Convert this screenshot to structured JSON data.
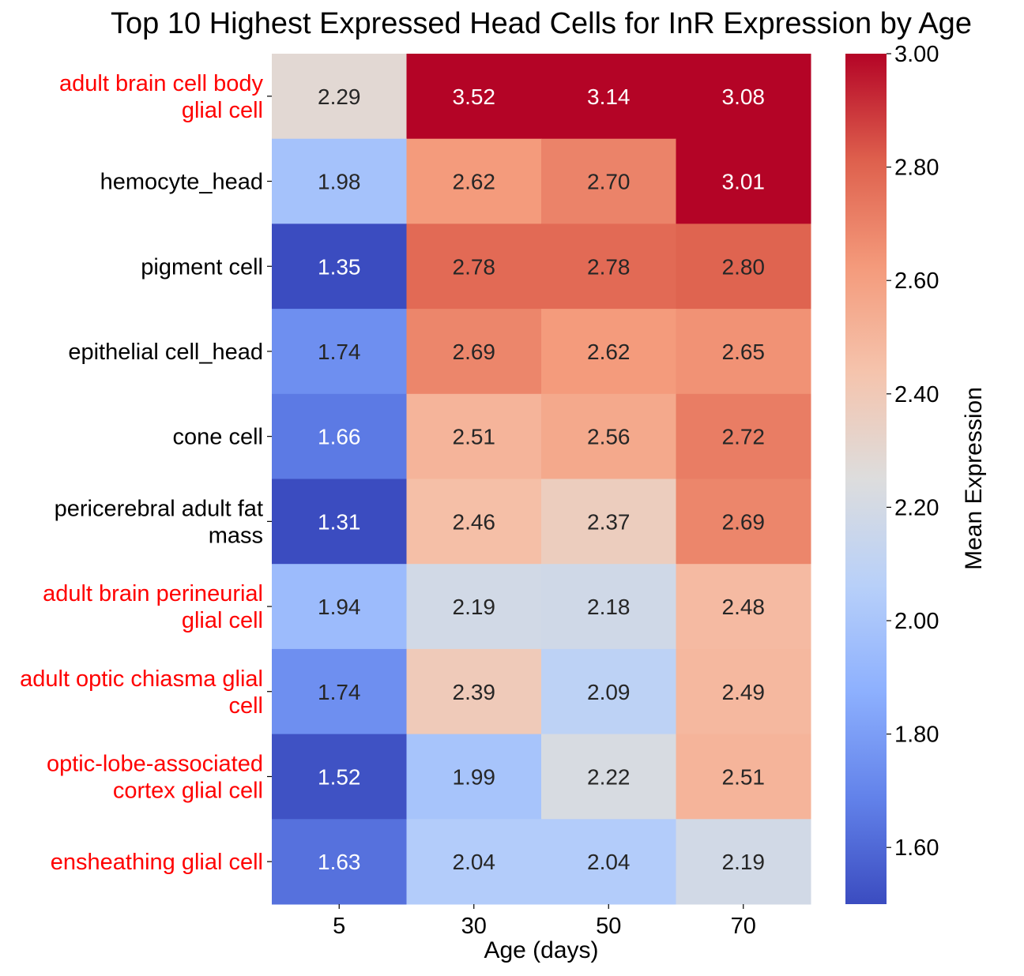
{
  "chart_data": {
    "type": "heatmap",
    "title": "Top 10 Highest Expressed Head Cells for InR Expression by Age",
    "xlabel": "Age (days)",
    "ylabel": "",
    "x_categories": [
      "5",
      "30",
      "50",
      "70"
    ],
    "y_categories": [
      "adult brain cell body glial cell",
      "hemocyte_head",
      "pigment cell",
      "epithelial cell_head",
      "cone cell",
      "pericerebral adult fat mass",
      "adult brain perineurial glial cell",
      "adult optic chiasma glial cell",
      "optic-lobe-associated cortex glial cell",
      "ensheathing glial cell"
    ],
    "y_category_label_lines": [
      [
        "adult brain cell body",
        "glial cell"
      ],
      [
        "hemocyte_head"
      ],
      [
        "pigment cell"
      ],
      [
        "epithelial cell_head"
      ],
      [
        "cone cell"
      ],
      [
        "pericerebral adult fat",
        "mass"
      ],
      [
        "adult brain perineurial",
        "glial cell"
      ],
      [
        "adult optic chiasma glial",
        "cell"
      ],
      [
        "optic-lobe-associated",
        "cortex glial cell"
      ],
      [
        "ensheathing glial cell"
      ]
    ],
    "y_label_colors": [
      "#ff0000",
      "#000000",
      "#000000",
      "#000000",
      "#000000",
      "#000000",
      "#ff0000",
      "#ff0000",
      "#ff0000",
      "#ff0000"
    ],
    "values": [
      [
        2.29,
        3.52,
        3.14,
        3.08
      ],
      [
        1.98,
        2.62,
        2.7,
        3.01
      ],
      [
        1.35,
        2.78,
        2.78,
        2.8
      ],
      [
        1.74,
        2.69,
        2.62,
        2.65
      ],
      [
        1.66,
        2.51,
        2.56,
        2.72
      ],
      [
        1.31,
        2.46,
        2.37,
        2.69
      ],
      [
        1.94,
        2.19,
        2.18,
        2.48
      ],
      [
        1.74,
        2.39,
        2.09,
        2.49
      ],
      [
        1.52,
        1.99,
        2.22,
        2.51
      ],
      [
        1.63,
        2.04,
        2.04,
        2.19
      ]
    ],
    "value_format": "0.00",
    "colormap": "coolwarm",
    "vmin": 1.5,
    "vmax": 3.0,
    "colorbar": {
      "label": "Mean Expression",
      "ticks": [
        "1.60",
        "1.80",
        "2.00",
        "2.20",
        "2.40",
        "2.60",
        "2.80",
        "3.00"
      ]
    },
    "grid": false
  }
}
